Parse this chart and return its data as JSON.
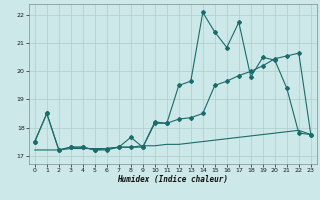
{
  "xlabel": "Humidex (Indice chaleur)",
  "ylabel": "",
  "xlim": [
    -0.5,
    23.5
  ],
  "ylim": [
    16.7,
    22.4
  ],
  "yticks": [
    17,
    18,
    19,
    20,
    21,
    22
  ],
  "xticks": [
    0,
    1,
    2,
    3,
    4,
    5,
    6,
    7,
    8,
    9,
    10,
    11,
    12,
    13,
    14,
    15,
    16,
    17,
    18,
    19,
    20,
    21,
    22,
    23
  ],
  "bg_color": "#cde8e8",
  "grid_color": "#aecece",
  "line_color": "#1a6b6b",
  "line1_x": [
    0,
    1,
    2,
    3,
    4,
    5,
    6,
    7,
    8,
    9,
    10,
    11,
    12,
    13,
    14,
    15,
    16,
    17,
    18,
    19,
    20,
    21,
    22,
    23
  ],
  "line1_y": [
    17.5,
    18.5,
    17.2,
    17.3,
    17.3,
    17.2,
    17.2,
    17.3,
    17.3,
    17.3,
    18.2,
    18.15,
    19.5,
    19.65,
    22.1,
    21.4,
    20.85,
    21.75,
    19.8,
    20.5,
    20.4,
    19.4,
    17.8,
    17.75
  ],
  "line2_x": [
    0,
    1,
    2,
    3,
    4,
    5,
    6,
    7,
    8,
    9,
    10,
    11,
    12,
    13,
    14,
    15,
    16,
    17,
    18,
    19,
    20,
    21,
    22,
    23
  ],
  "line2_y": [
    17.5,
    18.5,
    17.2,
    17.3,
    17.3,
    17.2,
    17.25,
    17.3,
    17.65,
    17.3,
    18.15,
    18.15,
    18.3,
    18.35,
    18.5,
    19.5,
    19.65,
    19.85,
    20.0,
    20.2,
    20.45,
    20.55,
    20.65,
    17.75
  ],
  "line3_x": [
    0,
    1,
    2,
    3,
    4,
    5,
    6,
    7,
    8,
    9,
    10,
    11,
    12,
    13,
    14,
    15,
    16,
    17,
    18,
    19,
    20,
    21,
    22,
    23
  ],
  "line3_y": [
    17.2,
    17.2,
    17.2,
    17.25,
    17.25,
    17.25,
    17.25,
    17.3,
    17.3,
    17.35,
    17.35,
    17.4,
    17.4,
    17.45,
    17.5,
    17.55,
    17.6,
    17.65,
    17.7,
    17.75,
    17.8,
    17.85,
    17.9,
    17.75
  ]
}
